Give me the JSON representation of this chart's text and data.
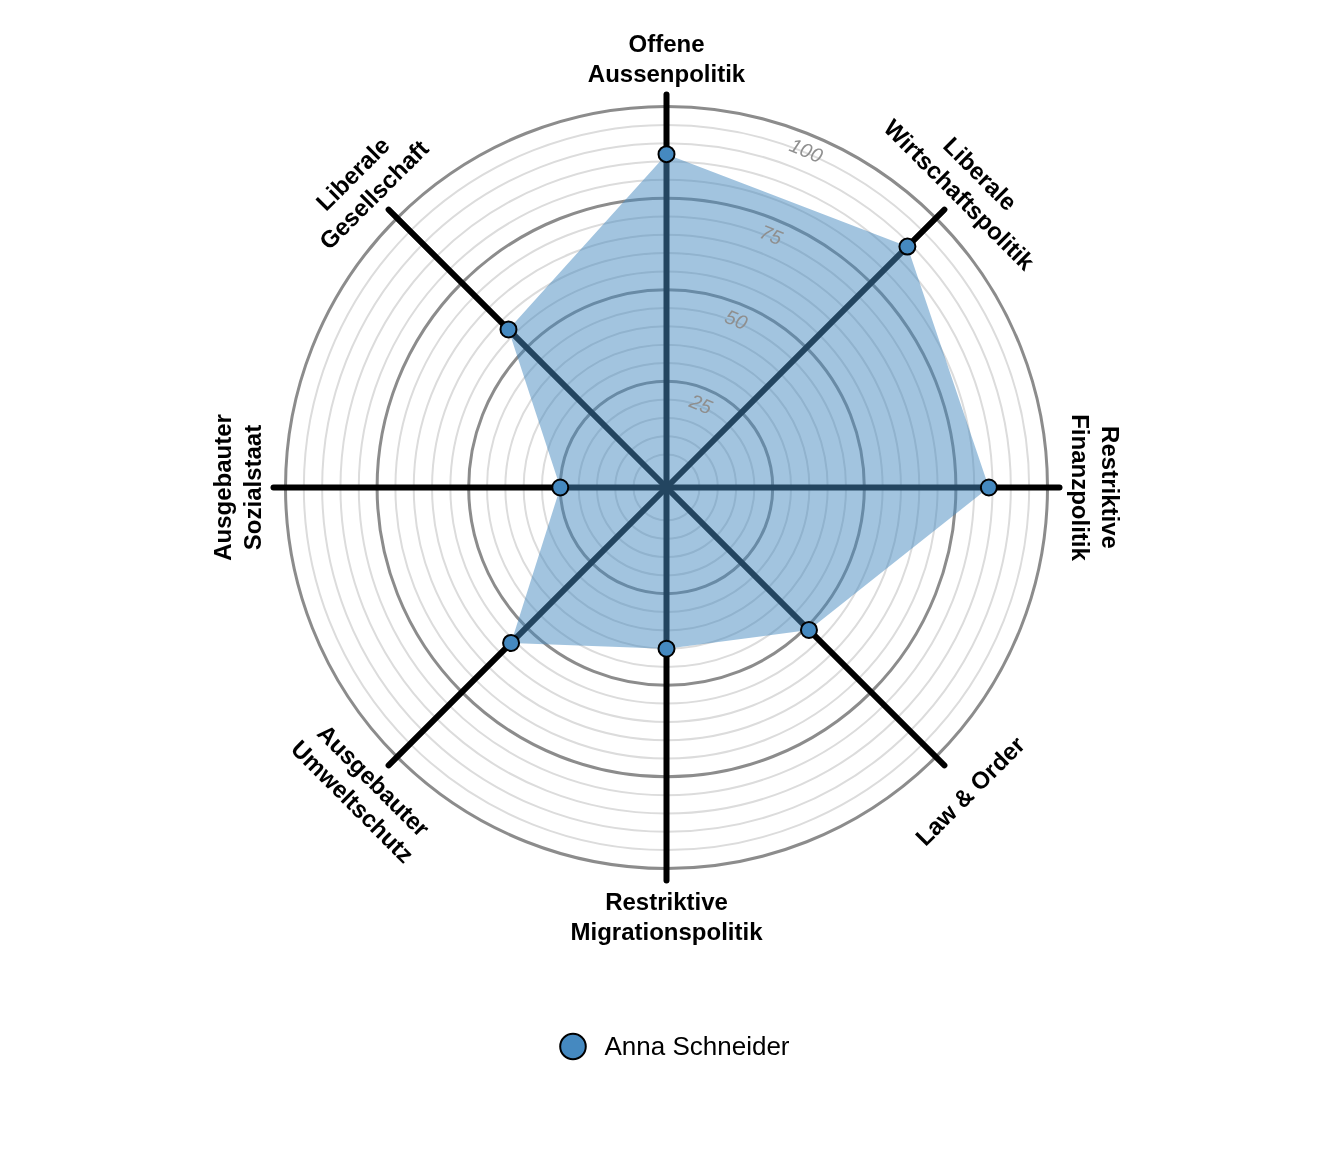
{
  "chart_data": {
    "type": "radar",
    "categories": [
      "Offene\nAussenpolitik",
      "Liberale\nWirtschaftspolitik",
      "Restriktive\nFinanzpolitik",
      "Law & Order",
      "Restriktive\nMigrationspolitik",
      "Ausgebauter\nUmweltschutz",
      "Ausgebauter\nSozialstaat",
      "Liberale\nGesellschaft"
    ],
    "series": [
      {
        "name": "Anna Schneider",
        "color": "#4589c0",
        "values": [
          87,
          89,
          84,
          51,
          40,
          56,
          25,
          57
        ]
      }
    ],
    "ylim": [
      -4,
      100
    ],
    "yticks": [
      25,
      50,
      75,
      100
    ],
    "grid": true,
    "legend": "bottom",
    "marker": "circle"
  }
}
